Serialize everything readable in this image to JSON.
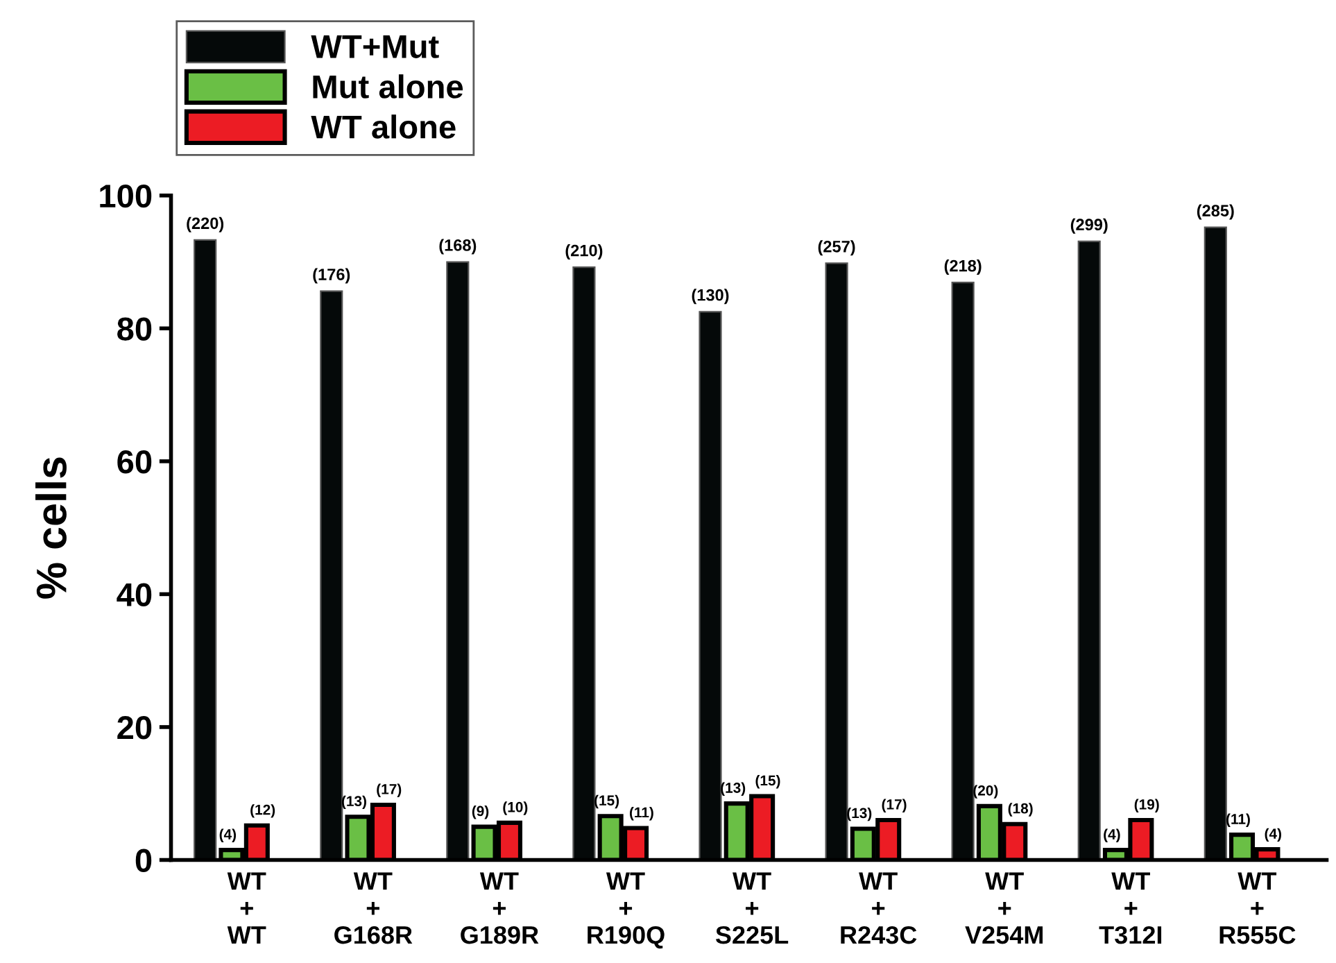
{
  "chart_data": {
    "type": "bar",
    "ylabel": "% cells",
    "categories": [
      "WT\n+\nWT",
      "WT\n+\nG168R",
      "WT\n+\nG189R",
      "WT\n+\nR190Q",
      "WT\n+\nS225L",
      "WT\n+\nR243C",
      "WT\n+\nV254M",
      "WT\n+\nT312I",
      "WT\n+\nR555C"
    ],
    "series": [
      {
        "name": "WT+Mut",
        "color": "#050909",
        "values": [
          93.3,
          85.6,
          90.0,
          89.2,
          82.5,
          89.8,
          86.9,
          93.1,
          95.2
        ]
      },
      {
        "name": "Mut alone",
        "color": "#6abf45",
        "values": [
          1.5,
          6.5,
          5.0,
          6.6,
          8.5,
          4.7,
          8.1,
          1.5,
          3.8
        ]
      },
      {
        "name": "WT alone",
        "color": "#ec1c24",
        "values": [
          5.2,
          8.3,
          5.6,
          4.8,
          9.6,
          6.0,
          5.4,
          6.0,
          1.6
        ]
      }
    ],
    "annotations": [
      "(220)",
      "(176)",
      "(168)",
      "(210)",
      "(130)",
      "(257)",
      "(218)",
      "(299)",
      "(285)",
      "(4)",
      "(13)",
      "(9)",
      "(15)",
      "(13)",
      "(13)",
      "(20)",
      "(4)",
      "(11)",
      "(12)",
      "(17)",
      "(10)",
      "(11)",
      "(15)",
      "(17)",
      "(18)",
      "(19)",
      "(4)"
    ],
    "ylim": [
      0,
      100
    ],
    "yticks": [
      0,
      20,
      40,
      60,
      80,
      100
    ],
    "grid": false,
    "legend": "top left"
  }
}
